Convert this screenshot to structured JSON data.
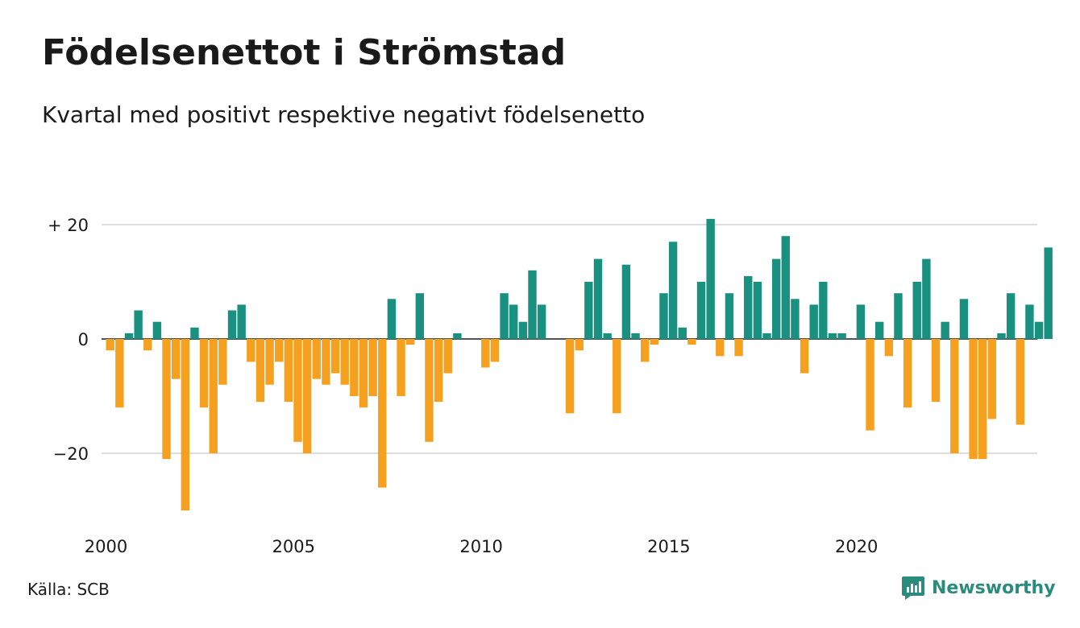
{
  "title": "Födelsenettot i Strömstad",
  "subtitle": "Kvartal med positivt respektive negativt födelsenetto",
  "source": "Källa: SCB",
  "brand": "Newsworthy",
  "colors": {
    "positive": "#1a9080",
    "negative": "#f5a01f",
    "grid": "#dddddd",
    "zero": "#1a1a1a",
    "brand": "#2a8c7d"
  },
  "chart_data": {
    "type": "bar",
    "title": "Födelsenettot i Strömstad",
    "subtitle": "Kvartal med positivt respektive negativt födelsenetto",
    "start": "2000 Q1",
    "frequency": "quarterly",
    "values": [
      -2,
      -12,
      1,
      5,
      -2,
      3,
      -21,
      -7,
      -30,
      2,
      -12,
      -20,
      -8,
      5,
      6,
      -4,
      -11,
      -8,
      -4,
      -11,
      -18,
      -20,
      -7,
      -8,
      -6,
      -8,
      -10,
      -12,
      -10,
      -26,
      7,
      -10,
      -1,
      8,
      -18,
      -11,
      -6,
      1,
      0,
      0,
      -5,
      -4,
      8,
      6,
      3,
      12,
      6,
      0,
      0,
      -13,
      -2,
      10,
      14,
      1,
      -13,
      13,
      1,
      -4,
      -1,
      8,
      17,
      2,
      -1,
      10,
      21,
      -3,
      8,
      -3,
      11,
      10,
      1,
      14,
      18,
      7,
      -6,
      6,
      10,
      1,
      1,
      0,
      6,
      -16,
      3,
      -3,
      8,
      -12,
      10,
      14,
      -11,
      3,
      -20,
      7,
      -21,
      -21,
      -14,
      1,
      8,
      -15,
      6,
      3,
      16
    ],
    "y_ticks": [
      {
        "value": 20,
        "label": "+ 20"
      },
      {
        "value": 0,
        "label": "0"
      },
      {
        "value": -20,
        "label": "−20"
      }
    ],
    "x_ticks": [
      {
        "year": 2000,
        "label": "2000"
      },
      {
        "year": 2005,
        "label": "2005"
      },
      {
        "year": 2010,
        "label": "2010"
      },
      {
        "year": 2015,
        "label": "2015"
      },
      {
        "year": 2020,
        "label": "2020"
      }
    ],
    "ylim": [
      -30,
      21
    ],
    "grid": true
  }
}
